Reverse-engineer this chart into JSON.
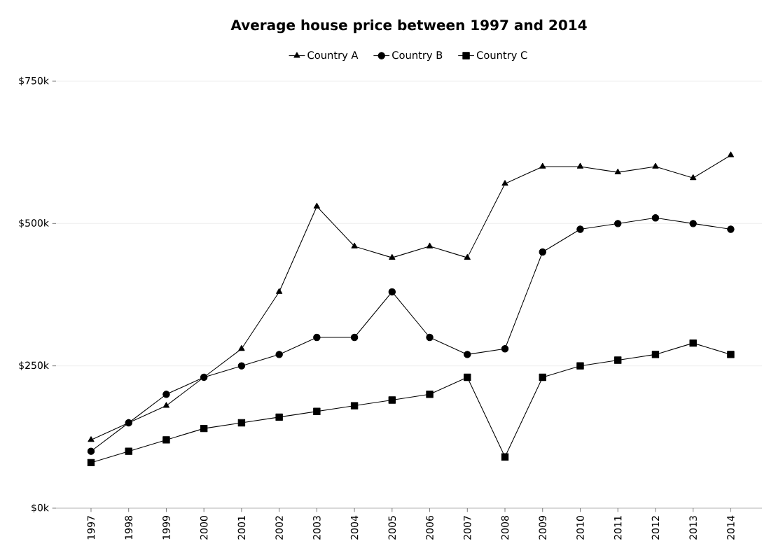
{
  "chart_data": {
    "type": "line",
    "title": "Average house price between 1997 and 2014",
    "categories": [
      "1997",
      "1998",
      "1999",
      "2000",
      "2001",
      "2002",
      "2003",
      "2004",
      "2005",
      "2006",
      "2007",
      "2008",
      "2009",
      "2010",
      "2011",
      "2012",
      "2013",
      "2014"
    ],
    "series": [
      {
        "name": "Country A",
        "color": "#000000",
        "marker": "triangle",
        "values": [
          120,
          150,
          180,
          230,
          280,
          380,
          530,
          460,
          440,
          460,
          440,
          570,
          600,
          600,
          590,
          600,
          580,
          620
        ]
      },
      {
        "name": "Country B",
        "color": "#000000",
        "marker": "circle",
        "values": [
          100,
          150,
          200,
          230,
          250,
          270,
          300,
          300,
          380,
          300,
          270,
          280,
          450,
          490,
          500,
          510,
          500,
          490
        ]
      },
      {
        "name": "Country C",
        "color": "#000000",
        "marker": "square",
        "values": [
          80,
          100,
          120,
          140,
          150,
          160,
          170,
          180,
          190,
          200,
          230,
          90,
          230,
          250,
          260,
          270,
          290,
          270
        ]
      }
    ],
    "ylim": [
      0,
      750
    ],
    "yticks": [
      {
        "value": 0,
        "label": "$0k"
      },
      {
        "value": 250,
        "label": "$250k"
      },
      {
        "value": 500,
        "label": "$500k"
      },
      {
        "value": 750,
        "label": "$750k"
      }
    ],
    "grid": "y",
    "legend": "top",
    "line_style": "solid"
  }
}
